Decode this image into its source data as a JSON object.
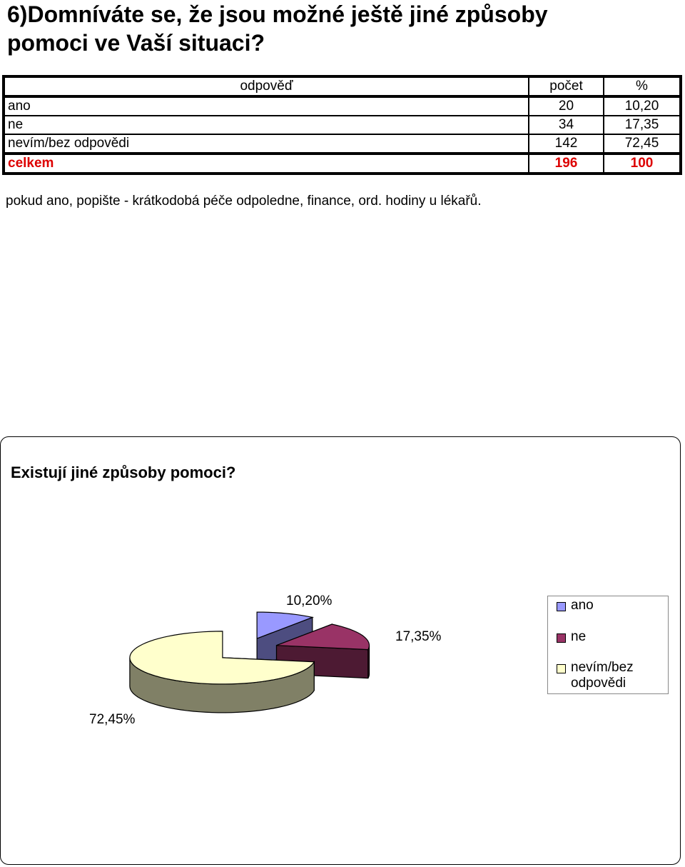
{
  "question": {
    "line1": "6)Domníváte se, že jsou možné ještě jiné způsoby",
    "line2": "pomoci ve Vaší situaci?"
  },
  "table": {
    "headers": {
      "answer": "odpověď",
      "count": "počet",
      "percent": "%"
    },
    "rows": [
      {
        "label": "ano",
        "count": "20",
        "percent": "10,20"
      },
      {
        "label": "ne",
        "count": "34",
        "percent": "17,35"
      },
      {
        "label": "nevím/bez odpovědi",
        "count": "142",
        "percent": "72,45"
      }
    ],
    "total": {
      "label": "celkem",
      "count": "196",
      "percent": "100"
    }
  },
  "note": "pokud ano, popište - krátkodobá péče odpoledne, finance, ord. hodiny u lékařů.",
  "chart_data": {
    "type": "pie",
    "title": "Existují jiné způsoby pomoci?",
    "three_d": true,
    "exploded": true,
    "legend_position": "right",
    "slices": [
      {
        "name": "ano",
        "value": 10.2,
        "label": "10,20%",
        "color": "#9999ff",
        "side_color": "#4d4d80"
      },
      {
        "name": "ne",
        "value": 17.35,
        "label": "17,35%",
        "color": "#993366",
        "side_color": "#4d1a33"
      },
      {
        "name": "nevím/bez odpovědi",
        "value": 72.45,
        "label": "72,45%",
        "color": "#ffffcc",
        "side_color": "#808066"
      }
    ],
    "legend": [
      {
        "line1": "ano",
        "line2": ""
      },
      {
        "line1": "ne",
        "line2": ""
      },
      {
        "line1": "nevím/bez",
        "line2": "odpovědi"
      }
    ]
  }
}
